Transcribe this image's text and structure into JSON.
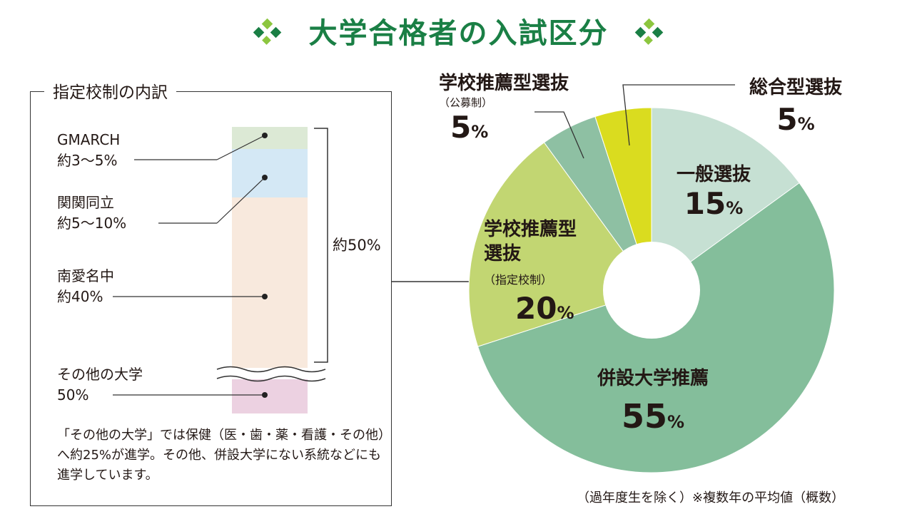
{
  "title": "大学合格者の入試区分",
  "breakdown": {
    "title": "指定校制の内訳",
    "items": [
      {
        "name": "GMARCH",
        "value": "約3〜5%",
        "color": "#dce9d5"
      },
      {
        "name": "関関同立",
        "value": "約5〜10%",
        "color": "#d4e8f5"
      },
      {
        "name": "南愛名中",
        "value": "約40%",
        "color": "#f8e9dd"
      },
      {
        "name": "その他の大学",
        "value": "50%",
        "color": "#ecd1e1"
      }
    ],
    "bracket_label": "約50%",
    "note": "「その他の大学」では保健（医・歯・薬・看護・その他）へ約25%が進学。その他、併設大学にない系統などにも進学しています。"
  },
  "footer": "（過年度生を除く）※複数年の平均値（概数）",
  "chart_data": {
    "type": "pie",
    "donut": true,
    "slices": [
      {
        "label": "一般選抜",
        "sub": "",
        "value": 15,
        "color": "#c6e0d3"
      },
      {
        "label": "併設大学推薦",
        "sub": "",
        "value": 55,
        "color": "#84be9b"
      },
      {
        "label": "学校推薦型選抜",
        "sub": "（指定校制）",
        "value": 20,
        "color": "#c2d672"
      },
      {
        "label": "学校推薦型選抜",
        "sub": "（公募制）",
        "value": 5,
        "color": "#8ec0a3"
      },
      {
        "label": "総合型選抜",
        "sub": "",
        "value": 5,
        "color": "#dadc1f"
      }
    ],
    "value_suffix": "%"
  }
}
